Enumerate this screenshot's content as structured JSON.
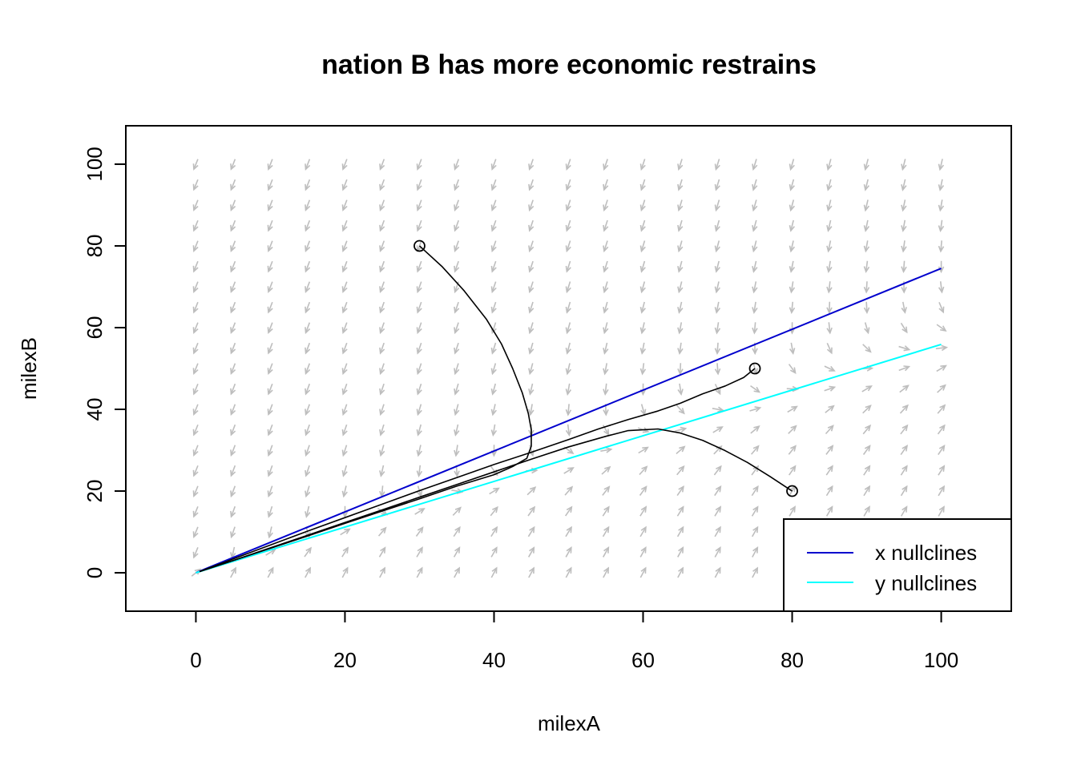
{
  "chart_data": {
    "type": "line",
    "title": "nation B has more economic restrains",
    "xlabel": "milexA",
    "ylabel": "milexB",
    "xlim": [
      -9.4,
      109.4
    ],
    "ylim": [
      -9.4,
      109.4
    ],
    "x_ticks": [
      0,
      20,
      40,
      60,
      80,
      100
    ],
    "y_ticks": [
      0,
      20,
      40,
      60,
      80,
      100
    ],
    "grid": false,
    "legend_position": "bottom-right",
    "series": [
      {
        "name": "x nullclines",
        "kind": "line",
        "color": "#0000CD",
        "x": [
          0,
          100
        ],
        "y": [
          0,
          74.5
        ]
      },
      {
        "name": "y nullclines",
        "kind": "line",
        "color": "#00FFFF",
        "x": [
          0,
          100
        ],
        "y": [
          0,
          55.9
        ]
      }
    ],
    "trajectories": [
      {
        "color": "#000000",
        "start": [
          30,
          80
        ],
        "x": [
          30,
          33,
          36,
          39,
          41,
          42.5,
          43.8,
          44.6,
          45,
          45,
          44.4,
          42.5,
          40,
          35,
          30,
          25,
          20,
          15,
          10,
          5,
          0.5
        ],
        "y": [
          80,
          75,
          69,
          62,
          56,
          50,
          44,
          39,
          35,
          31,
          28,
          26,
          24,
          21.2,
          18.1,
          15.1,
          12.1,
          9,
          6,
          3,
          0.3
        ]
      },
      {
        "color": "#000000",
        "start": [
          75,
          50
        ],
        "x": [
          75,
          73.5,
          71,
          68,
          65,
          62,
          58,
          54,
          50,
          45,
          40,
          35,
          30,
          25,
          20,
          15,
          10,
          5,
          0.5
        ],
        "y": [
          50,
          47.8,
          45.7,
          43.8,
          41.5,
          39.6,
          37.5,
          35.2,
          32.6,
          29.5,
          26.5,
          23.3,
          20.1,
          16.8,
          13.5,
          10.2,
          6.8,
          3.4,
          0.3
        ]
      },
      {
        "color": "#000000",
        "start": [
          80,
          20
        ],
        "x": [
          80,
          77,
          74,
          71,
          68,
          65,
          62,
          58,
          55,
          50,
          45,
          40,
          35,
          30,
          25,
          20,
          15,
          10,
          5,
          0.5
        ],
        "y": [
          20,
          23.6,
          27,
          29.9,
          32.4,
          34.2,
          35.2,
          34.8,
          33.4,
          30.8,
          27.8,
          24.7,
          21.6,
          18.5,
          15.4,
          12.3,
          9.2,
          6.1,
          3,
          0.3
        ]
      }
    ],
    "vector_field": {
      "color": "#BEBEBE",
      "x_range": [
        0,
        100
      ],
      "y_range": [
        0,
        100
      ],
      "step": 5,
      "arrow_len": 13.5,
      "a": 0.745,
      "b": 0.559,
      "bscale": 2.5
    }
  },
  "legend": {
    "items": [
      {
        "label": "x nullclines",
        "color": "#0000CD"
      },
      {
        "label": "y nullclines",
        "color": "#00FFFF"
      }
    ]
  }
}
